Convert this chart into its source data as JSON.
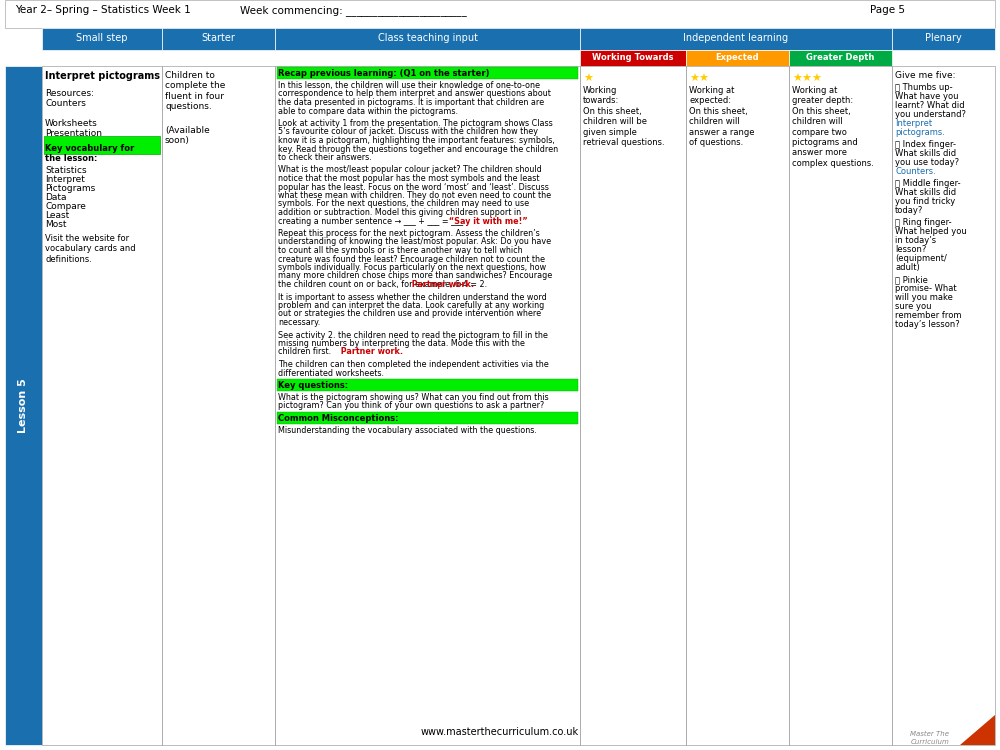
{
  "header_title": "Year 2– Spring – Statistics Week 1",
  "header_week": "Week commencing: _______________________",
  "header_page": "Page 5",
  "lesson_label": "Lesson 5",
  "col_headers": [
    "Small step",
    "Starter",
    "Class teaching input",
    "Independent learning",
    "Plenary"
  ],
  "ind_sub_headers": [
    "Working Towards",
    "Expected",
    "Greater Depth"
  ],
  "ind_sub_colors": [
    "#cc0000",
    "#ff9900",
    "#00aa44"
  ],
  "small_step_title": "Interpret pictograms",
  "small_step_body": "Resources:\nCounters\n\nWorksheets\nPresentation",
  "key_vocab_label": "Key vocabulary for\nthe lesson:",
  "key_vocab_words": "Statistics\nInterpret\nPictograms\nData\nCompare\nLeast\nMost",
  "visit_text": "Visit the website for\nvocabulary cards and\ndefinitions.",
  "starter_text": "Children to complete the fluent in four questions.\n\n(Available soon)",
  "class_teaching_para1_highlight": "Recap previous learning: (Q1 on the starter)",
  "class_teaching_para1_rest": "In this lesson, the children will use their knowledge of one-to-one correspondence to help them interpret and answer questions about the data presented in pictograms. It is important that children are able to compare data within the pictograms.",
  "class_teaching_para2": "Look at activity 1 from the presentation. The pictogram shows Class 5’s favourite colour of jacket. Discuss with the children how they know it is a pictogram, highlighting the important features: symbols, key. Read through the questions together and encourage the children to check their answers.",
  "class_teaching_para3_main": "What is the most/least popular colour jacket? The children should notice that the most popular has the most symbols and the least popular has the least. Focus on the word ‘most’ and ‘least’. Discuss what these mean with children. They do not even need to count the symbols. For the next questions, the children may need to use addition or subtraction. Model this giving children support in creating a number sentence → ___ + ___ = ___",
  "class_teaching_para3_red": " “Say it with me!”",
  "class_teaching_para4_main": "Repeat this process for the next pictogram. Assess the children’s understanding of knowing the least/most popular. Ask: Do you have to count all the symbols or is there another way to tell which creature was found the least? Encourage children not to count the symbols individually. Focus particularly on the next questions, how many more children chose chips more than sandwiches? Encourage the children count on or back, for example, 6-4 = 2.",
  "class_teaching_para4_red": " Partner work.",
  "class_teaching_para5": "It is important to assess whether the children understand the word problem and can interpret the data. Look carefully at any working out or strategies the children use and provide intervention where necessary.",
  "class_teaching_para6_main": "See activity 2. the children need to read the pictogram to fill in the missing numbers by interpreting the data. Mode this with the children first.",
  "class_teaching_para6_red": " Partner work.",
  "class_teaching_para7": "The children can then completed the independent activities via the differentiated worksheets.",
  "key_questions_label": "Key questions:",
  "key_questions_text": "What is the pictogram showing us? What can you find out from this pictogram? Can you think of your own questions to ask a partner?",
  "common_misconceptions_label": "Common Misconceptions:",
  "common_misconceptions_text": "Misunderstanding the vocabulary associated with the questions.",
  "working_towards_stars": 1,
  "expected_stars": 2,
  "greater_depth_stars": 3,
  "working_towards_text": "Working towards:\nOn this sheet, children will be given simple retrieval questions.",
  "expected_text": "Working at expected:\nOn this sheet, children will answer a range of questions.",
  "greater_depth_text": "Working at greater depth:\nOn this sheet, children will compare two pictograms and answer more complex questions.",
  "plenary_text_intro": "Give me five:",
  "plenary_thumbs": "👍 Thumbs up-\nWhat have you learnt? What did you understand?",
  "plenary_thumbs_highlight": "Interpret pictograms.",
  "plenary_index": "👆 Index finger-\nWhat skills did you use today?",
  "plenary_index_highlight": "Counters.",
  "plenary_middle": "🖕 Middle finger-\nWhat skills did you find tricky today?",
  "plenary_ring": "💍 Ring finger-\nWhat helped you in today’s lesson?\n(equipment/adult)",
  "plenary_pinkie": "👌 Pinkie promise-\nWhat will you make sure you remember from today’s lesson?",
  "blue_header_bg": "#1a6faf",
  "blue_sidebar_bg": "#1a6faf",
  "header_text_color": "#ffffff",
  "green_highlight": "#00cc00",
  "yellow_highlight": "#ffff00",
  "border_color": "#000000",
  "footer_text": "www.masterthecurriculum.co.uk"
}
